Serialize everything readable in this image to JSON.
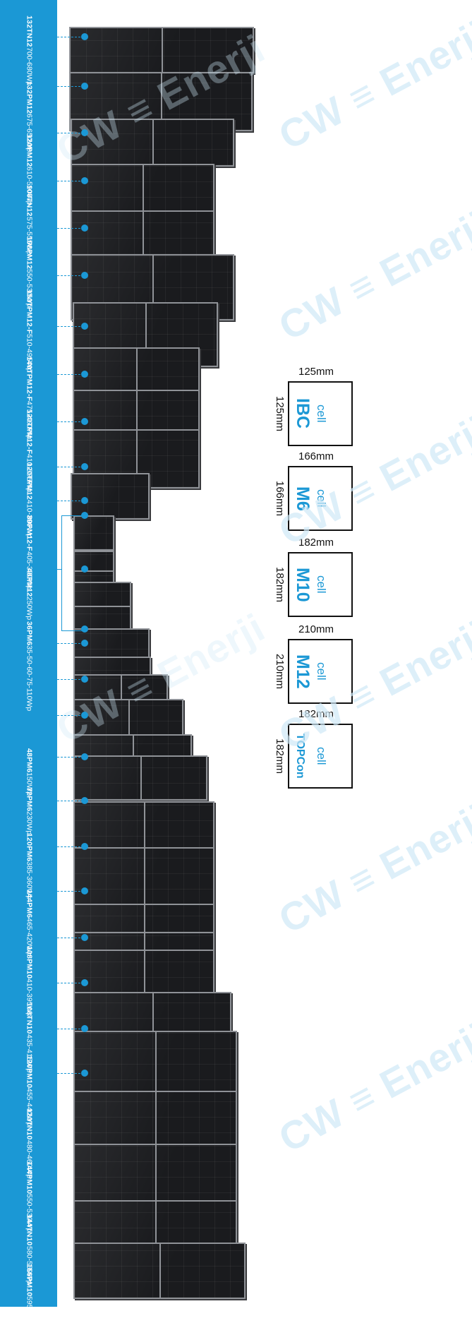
{
  "colors": {
    "accent": "#1b98d5",
    "panel": "#1a1b1e",
    "frame": "#8f9297",
    "watermark": "#cfe9f7"
  },
  "watermark": "CW ≡ Enerji",
  "models": [
    {
      "model": "132TN12",
      "power": "700-680Wp"
    },
    {
      "model": "132PM12",
      "power": "675-650Wp"
    },
    {
      "model": "120PM12",
      "power": "610-590Wp"
    },
    {
      "model": "108TN12",
      "power": "575-555Wp"
    },
    {
      "model": "108PM12",
      "power": "550-530Wp"
    },
    {
      "model": "150TPM12-F",
      "power": "510-495Wp"
    },
    {
      "model": "140TPM12-F",
      "power": "475-460Wp"
    },
    {
      "model": "120TPM12-F",
      "power": "410-395Wp"
    },
    {
      "model": "120TPM12",
      "power": "410-390Wp"
    },
    {
      "model": "80PM12-F",
      "power": "405-380Wp"
    },
    {
      "model": "48PM12",
      "power": "250Wp"
    },
    {
      "model": "36PM6",
      "power": "35-50-60-75-110Wp"
    },
    {
      "model": "48PM6",
      "power": "150Wp"
    },
    {
      "model": "72PM6",
      "power": "230Wp"
    },
    {
      "model": "120PM6",
      "power": "385-360Wp"
    },
    {
      "model": "144PM6",
      "power": "465-420Wp"
    },
    {
      "model": "108PM10",
      "power": "410-395Wp"
    },
    {
      "model": "108TN10",
      "power": "435-415Wp"
    },
    {
      "model": "120PM10",
      "power": "455-440Wp"
    },
    {
      "model": "120TN10",
      "power": "480-460Wp"
    },
    {
      "model": "144PM10",
      "power": "550-530Wp"
    },
    {
      "model": "144TN10",
      "power": "580-560Wp"
    },
    {
      "model": "156PM10",
      "power": "595-565Wp"
    }
  ],
  "cells": [
    {
      "name": "IBC",
      "sub": "cell",
      "top": "125mm",
      "side": "125mm"
    },
    {
      "name": "M6",
      "sub": "cell",
      "top": "166mm",
      "side": "166mm"
    },
    {
      "name": "M10",
      "sub": "cell",
      "top": "182mm",
      "side": "182mm"
    },
    {
      "name": "M12",
      "sub": "cell",
      "top": "210mm",
      "side": "210mm"
    },
    {
      "name": "TOPCon",
      "sub": "cell",
      "top": "182mm",
      "side": "182mm"
    }
  ]
}
